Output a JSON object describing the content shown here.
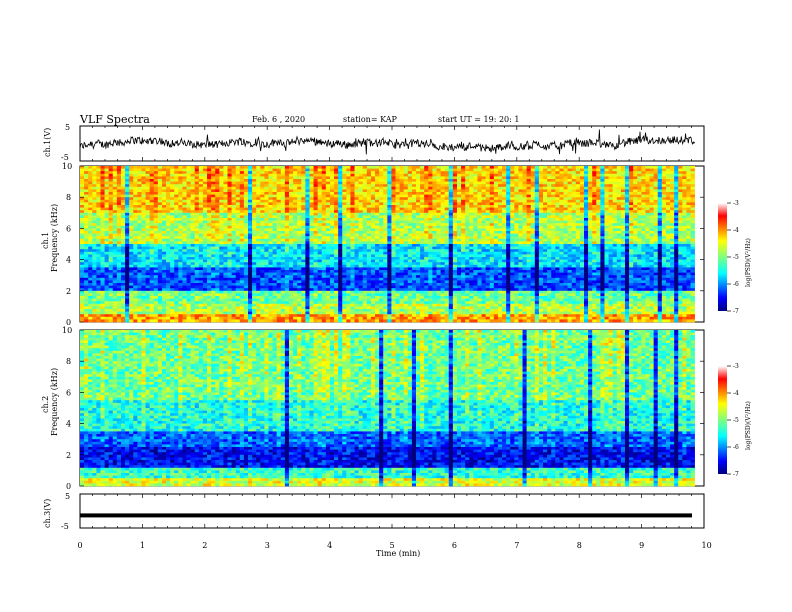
{
  "header": {
    "title": "VLF Spectra",
    "date": "Feb. 6 , 2020",
    "station": "station= KAP",
    "start_ut": "start UT =  19: 20: 1"
  },
  "chart_data": [
    {
      "type": "line",
      "ylabel": "ch.1(V)",
      "ylim": [
        -5,
        5
      ],
      "yticks": [
        "5",
        "-5"
      ],
      "xlim": [
        0,
        10
      ],
      "description_visual": "noisy waveform around -1 V",
      "line_color": "#000000"
    },
    {
      "type": "heatmap",
      "ylabel_top": "ch.1",
      "ylabel": "Frequency (kHz)",
      "ylim": [
        0,
        10
      ],
      "yticks": [
        "0",
        "2",
        "4",
        "6",
        "8",
        "10"
      ],
      "xlim": [
        0,
        9.85
      ],
      "colorbar": {
        "label": "log(PSD)(V²/Hz)",
        "ticks": [
          "-3",
          "-4",
          "-5",
          "-6",
          "-7"
        ],
        "range": [
          -7,
          -3
        ]
      }
    },
    {
      "type": "heatmap",
      "ylabel_top": "ch.2",
      "ylabel": "Frequency (kHz)",
      "ylim": [
        0,
        10
      ],
      "yticks": [
        "0",
        "2",
        "4",
        "6",
        "8",
        "10"
      ],
      "xlim": [
        0,
        9.85
      ],
      "colorbar": {
        "label": "log(PSD)(V²/Hz)",
        "ticks": [
          "-3",
          "-4",
          "-5",
          "-6",
          "-7"
        ],
        "range": [
          -7,
          -3
        ]
      }
    },
    {
      "type": "line",
      "ylabel": "ch.3(V)",
      "ylim": [
        -5,
        5
      ],
      "yticks": [
        "5",
        "-5"
      ],
      "xlim": [
        0,
        10
      ],
      "constant_value": -1.3
    }
  ],
  "xaxis": {
    "label": "Time (min)",
    "ticks": [
      "0",
      "1",
      "2",
      "3",
      "4",
      "5",
      "6",
      "7",
      "8",
      "9",
      "10"
    ],
    "range": [
      0,
      10
    ]
  },
  "colors": {
    "jet": [
      "#00007f",
      "#0000ff",
      "#007fff",
      "#00ffff",
      "#7fff7f",
      "#ffff00",
      "#ff7f00",
      "#ff0000",
      "#7f0000"
    ]
  }
}
